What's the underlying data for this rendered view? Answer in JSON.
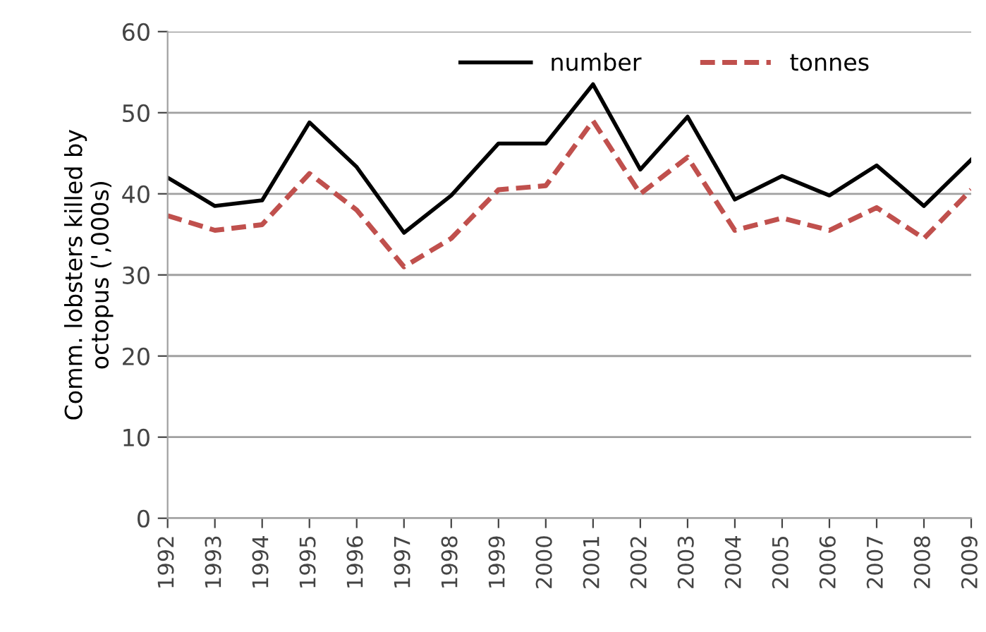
{
  "chart_data": {
    "type": "line",
    "ylabel": "Comm. lobsters killed by\noctopus (',000s)",
    "categories": [
      "1992",
      "1993",
      "1994",
      "1995",
      "1996",
      "1997",
      "1998",
      "1999",
      "2000",
      "2001",
      "2002",
      "2003",
      "2004",
      "2005",
      "2006",
      "2007",
      "2008",
      "2009"
    ],
    "series": [
      {
        "name": "number",
        "color": "#000000",
        "line_style": "solid",
        "values": [
          42,
          38.5,
          39.2,
          48.8,
          43.3,
          35.2,
          39.8,
          46.2,
          46.2,
          53.5,
          43,
          49.5,
          39.3,
          42.2,
          39.8,
          43.5,
          38.5,
          44.2
        ]
      },
      {
        "name": "tonnes",
        "color": "#c0504d",
        "line_style": "dashed",
        "values": [
          37.3,
          35.5,
          36.2,
          42.5,
          38,
          31,
          34.5,
          40.5,
          41,
          49,
          40,
          44.5,
          35.5,
          37,
          35.5,
          38.3,
          34.5,
          40.5
        ]
      }
    ],
    "ylim": [
      0,
      60
    ],
    "yticks": [
      0,
      10,
      20,
      30,
      40,
      50,
      60
    ],
    "grid": "y",
    "legend": "top right",
    "marker": "none"
  }
}
